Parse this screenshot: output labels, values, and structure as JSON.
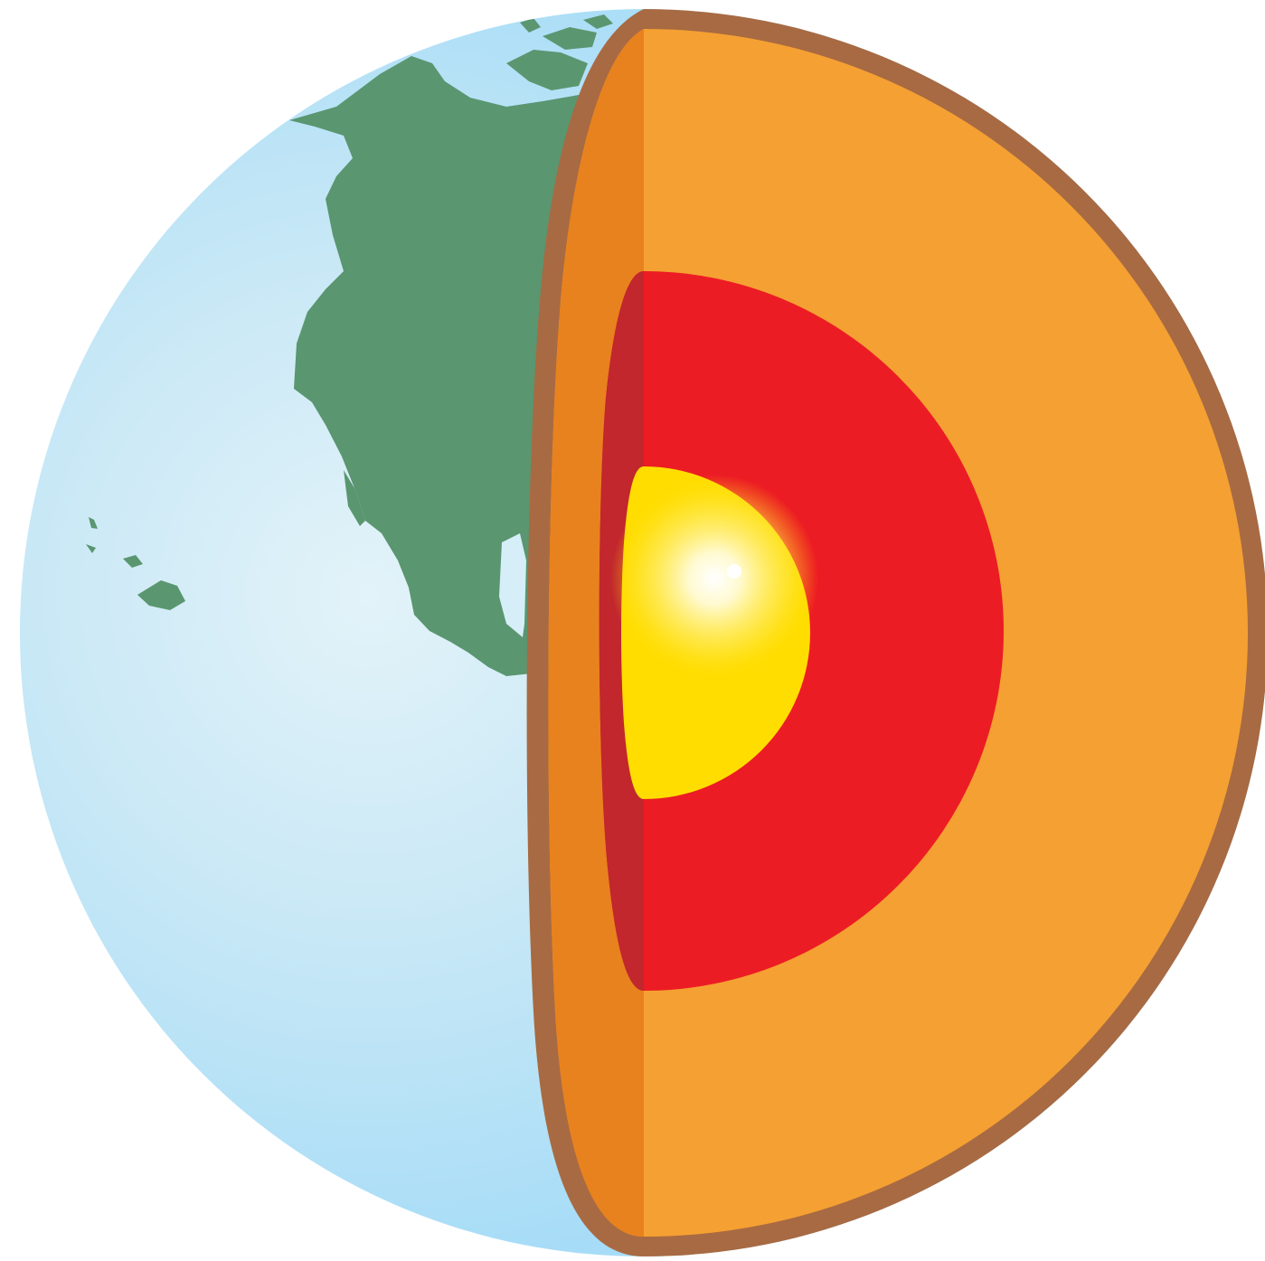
{
  "figure": {
    "subject": "earth-cross-section",
    "layers": [
      {
        "key": "crust",
        "color": "#a86a42"
      },
      {
        "key": "mantle",
        "color": "#f5a032"
      },
      {
        "key": "mantle-shadow",
        "color": "#e8821e"
      },
      {
        "key": "outer-core",
        "color": "#ec1c24"
      },
      {
        "key": "outer-core-shadow",
        "color": "#c1272d"
      },
      {
        "key": "inner-core",
        "color": "#ffdd00"
      },
      {
        "key": "inner-core-glow",
        "color": "#fff9cc"
      }
    ],
    "surface": {
      "ocean_color": "#a6dcf7",
      "ocean_highlight": "#dff1f8",
      "land_color": "#5a9670"
    }
  }
}
